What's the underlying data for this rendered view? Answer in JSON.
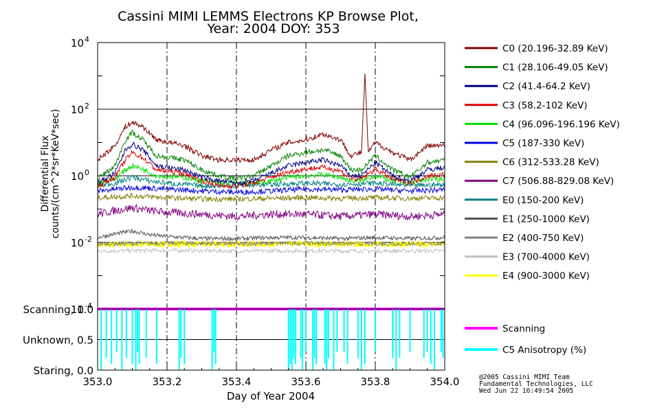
{
  "chart_data": [
    {
      "type": "line",
      "title": "Cassini MIMI LEMMS Electrons KP Browse Plot,",
      "subtitle": "Year: 2004 DOY: 353",
      "ylabel_line1": "Differential Flux",
      "ylabel_line2": "counts/(cm^2*sr*KeV*sec)",
      "yscale": "log",
      "ylim": [
        0.0001,
        10000
      ],
      "xlim": [
        353.0,
        354.0
      ],
      "ytick_base": [
        "10",
        "10",
        "10",
        "10",
        "10"
      ],
      "ytick_exp": [
        "4",
        "2",
        "0",
        "-2",
        "-4"
      ],
      "grid": "dashed vertical lines at 353.2, 353.4, 353.6, 353.8; solid horizontal lines at each decade",
      "legend_position": "right",
      "series": [
        {
          "name": "C0 (20.196-32.89 KeV)",
          "color": "#800000",
          "x": [
            353.0,
            353.05,
            353.08,
            353.1,
            353.13,
            353.17,
            353.25,
            353.3,
            353.35,
            353.4,
            353.45,
            353.5,
            353.55,
            353.6,
            353.65,
            353.7,
            353.73,
            353.76,
            353.77,
            353.78,
            353.8,
            353.85,
            353.9,
            353.95,
            354.0
          ],
          "values": [
            3,
            8,
            30,
            40,
            30,
            12,
            8,
            4,
            3,
            3,
            3,
            6,
            10,
            12,
            18,
            12,
            4,
            5,
            1000,
            5,
            10,
            5,
            3,
            8,
            8
          ]
        },
        {
          "name": "C1 (28.106-49.05 KeV)",
          "color": "#008000",
          "x": [
            353.0,
            353.05,
            353.08,
            353.1,
            353.13,
            353.17,
            353.25,
            353.3,
            353.35,
            353.4,
            353.45,
            353.5,
            353.55,
            353.6,
            353.65,
            353.7,
            353.73,
            353.76,
            353.8,
            353.85,
            353.9,
            353.95,
            354.0
          ],
          "values": [
            0.8,
            2,
            12,
            20,
            12,
            4,
            3,
            1.5,
            1,
            0.8,
            1,
            2,
            4,
            5,
            6,
            4,
            1.5,
            1.5,
            4,
            1.5,
            0.9,
            2.5,
            3
          ]
        },
        {
          "name": "C2 (41.4-64.2 KeV)",
          "color": "#000080",
          "x": [
            353.0,
            353.05,
            353.08,
            353.1,
            353.13,
            353.17,
            353.25,
            353.3,
            353.35,
            353.4,
            353.45,
            353.5,
            353.55,
            353.6,
            353.65,
            353.7,
            353.73,
            353.76,
            353.8,
            353.85,
            353.9,
            353.95,
            354.0
          ],
          "values": [
            0.6,
            1.2,
            6,
            9,
            6,
            2,
            1.5,
            0.9,
            0.7,
            0.6,
            0.7,
            1.2,
            2,
            2.5,
            3,
            2,
            1,
            1,
            2.5,
            1,
            0.7,
            1.5,
            1.8
          ]
        },
        {
          "name": "C3 (58.2-102 KeV)",
          "color": "#e00000",
          "x": [
            353.0,
            353.05,
            353.08,
            353.1,
            353.13,
            353.17,
            353.25,
            353.3,
            353.35,
            353.4,
            353.45,
            353.5,
            353.55,
            353.6,
            353.65,
            353.7,
            353.73,
            353.76,
            353.8,
            353.85,
            353.9,
            353.95,
            354.0
          ],
          "values": [
            0.5,
            0.9,
            3,
            5,
            3.5,
            1.5,
            1.2,
            0.7,
            0.5,
            0.5,
            0.6,
            0.9,
            1.3,
            1.6,
            1.8,
            1.4,
            0.8,
            0.8,
            1.6,
            0.8,
            0.6,
            1,
            1.1
          ]
        },
        {
          "name": "C4 (96.096-196.196 KeV)",
          "color": "#00e000",
          "x": [
            353.0,
            353.05,
            353.08,
            353.1,
            353.13,
            353.17,
            353.25,
            353.3,
            353.35,
            353.4,
            353.45,
            353.5,
            353.55,
            353.6,
            353.65,
            353.7,
            353.73,
            353.76,
            353.8,
            353.85,
            353.9,
            353.95,
            354.0
          ],
          "values": [
            0.6,
            0.8,
            1.5,
            2,
            1.6,
            1,
            0.9,
            0.7,
            0.6,
            0.6,
            0.6,
            0.7,
            0.9,
            1,
            1.1,
            0.9,
            0.7,
            0.7,
            1,
            0.7,
            0.6,
            0.8,
            0.8
          ]
        },
        {
          "name": "C5 (187-330 KeV)",
          "color": "#0000e0",
          "x": [
            353.0,
            353.1,
            353.2,
            353.3,
            353.4,
            353.5,
            353.6,
            353.7,
            353.8,
            353.9,
            354.0
          ],
          "values": [
            0.35,
            0.45,
            0.4,
            0.35,
            0.32,
            0.35,
            0.4,
            0.38,
            0.4,
            0.35,
            0.38
          ]
        },
        {
          "name": "C6 (312-533.28 KeV)",
          "color": "#808000",
          "x": [
            353.0,
            353.1,
            353.2,
            353.3,
            353.4,
            353.5,
            353.6,
            353.7,
            353.8,
            353.9,
            354.0
          ],
          "values": [
            0.22,
            0.25,
            0.22,
            0.2,
            0.2,
            0.21,
            0.22,
            0.21,
            0.22,
            0.21,
            0.22
          ]
        },
        {
          "name": "C7 (506.88-829.08 KeV)",
          "color": "#800080",
          "x": [
            353.0,
            353.05,
            353.1,
            353.15,
            353.2,
            353.3,
            353.4,
            353.5,
            353.6,
            353.7,
            353.8,
            353.9,
            354.0
          ],
          "values": [
            0.07,
            0.09,
            0.11,
            0.09,
            0.08,
            0.07,
            0.06,
            0.07,
            0.07,
            0.06,
            0.07,
            0.06,
            0.07
          ]
        },
        {
          "name": "E0 (150-200 KeV)",
          "color": "#008080",
          "x": [
            353.0,
            353.05,
            353.1,
            353.15,
            353.2,
            353.3,
            353.4,
            353.5,
            353.6,
            353.7,
            353.8,
            353.9,
            354.0
          ],
          "values": [
            0.5,
            0.6,
            0.9,
            0.7,
            0.6,
            0.5,
            0.5,
            0.55,
            0.6,
            0.55,
            0.6,
            0.5,
            0.55
          ]
        },
        {
          "name": "E1 (250-1000 KeV)",
          "color": "#505050",
          "x": [
            353.0,
            353.05,
            353.1,
            353.15,
            353.2,
            353.3,
            353.4,
            353.5,
            353.6,
            353.7,
            353.8,
            353.9,
            354.0
          ],
          "values": [
            0.014,
            0.018,
            0.022,
            0.017,
            0.015,
            0.013,
            0.013,
            0.014,
            0.014,
            0.013,
            0.014,
            0.013,
            0.014
          ]
        },
        {
          "name": "E2 (400-750 KeV)",
          "color": "#808080",
          "x": [
            353.0,
            353.2,
            353.4,
            353.6,
            353.8,
            354.0
          ],
          "values": [
            0.009,
            0.0095,
            0.009,
            0.0095,
            0.009,
            0.0092
          ]
        },
        {
          "name": "E3 (700-4000 KeV)",
          "color": "#c0c0c0",
          "x": [
            353.0,
            353.2,
            353.4,
            353.6,
            353.8,
            354.0
          ],
          "values": [
            0.0055,
            0.0058,
            0.0055,
            0.0056,
            0.0055,
            0.0056
          ]
        },
        {
          "name": "E4 (900-3000 KeV)",
          "color": "#ffff00",
          "x": [
            353.0,
            353.2,
            353.4,
            353.6,
            353.8,
            354.0
          ],
          "values": [
            0.0085,
            0.009,
            0.0088,
            0.009,
            0.0087,
            0.009
          ]
        }
      ]
    },
    {
      "type": "line",
      "xlabel": "Day of Year 2004",
      "xlim": [
        353.0,
        354.0
      ],
      "xticks": [
        "353.0",
        "353.2",
        "353.4",
        "353.6",
        "353.8",
        "354.0"
      ],
      "ylim": [
        0.0,
        1.0
      ],
      "yticks": [
        "Staring, 0.0",
        "Unknown, 0.5",
        "Scanning, 1.0"
      ],
      "legend_position": "right",
      "series": [
        {
          "name": "Scanning",
          "color": "#ff00ff",
          "x": [
            353.0,
            354.0
          ],
          "values": [
            1.0,
            1.0
          ]
        },
        {
          "name": "C5 Anisotropy (%)",
          "color": "#00ffff",
          "x": [
            353.01,
            353.025,
            353.04,
            353.055,
            353.07,
            353.083,
            353.1,
            353.11,
            353.115,
            353.12,
            353.14,
            353.17,
            353.235,
            353.24,
            353.25,
            353.33,
            353.335,
            353.34,
            353.55,
            353.555,
            353.56,
            353.565,
            353.57,
            353.585,
            353.59,
            353.6,
            353.62,
            353.625,
            353.63,
            353.655,
            353.66,
            353.665,
            353.68,
            353.69,
            353.71,
            353.72,
            353.75,
            353.76,
            353.77,
            353.8,
            353.85,
            353.86,
            353.87,
            353.9,
            353.94,
            353.95,
            353.96,
            353.97,
            353.99,
            353.995
          ],
          "values": [
            0.0,
            0.2,
            0.1,
            0.3,
            0.0,
            0.2,
            0.1,
            0.0,
            0.3,
            0.1,
            0.2,
            0.1,
            0.0,
            0.2,
            0.1,
            0.0,
            0.3,
            0.1,
            0.0,
            0.1,
            0.0,
            0.2,
            0.1,
            0.2,
            0.0,
            0.3,
            0.0,
            0.2,
            0.1,
            0.1,
            0.0,
            0.2,
            0.0,
            0.3,
            0.3,
            0.1,
            0.2,
            0.0,
            0.1,
            0.3,
            0.2,
            0.0,
            0.2,
            0.3,
            0.2,
            0.3,
            0.1,
            0.0,
            0.3,
            0.2
          ]
        }
      ]
    }
  ],
  "credits": [
    "@2005 Cassini MIMI Team",
    "Fundamental Technologies, LLC",
    "Wed Jun 22 16:49:54 2005"
  ]
}
